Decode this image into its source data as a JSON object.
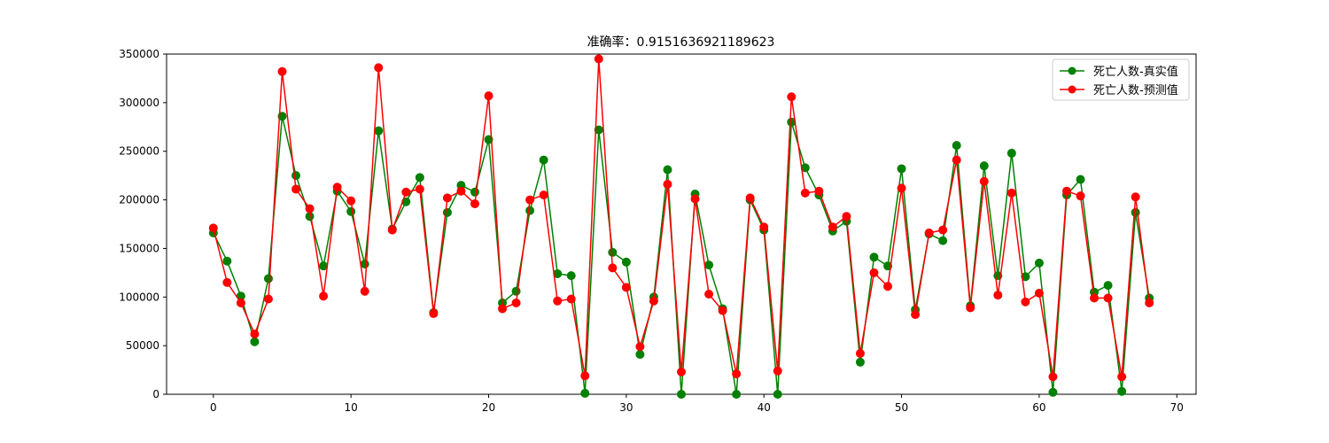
{
  "chart_data": {
    "type": "line",
    "title": "准确率：0.9151636921189623",
    "xlabel": "",
    "ylabel": "",
    "xlim": [
      -3.4,
      71.4
    ],
    "ylim": [
      0,
      350000
    ],
    "xticks": [
      0,
      10,
      20,
      30,
      40,
      50,
      60,
      70
    ],
    "yticks": [
      0,
      50000,
      100000,
      150000,
      200000,
      250000,
      300000,
      350000
    ],
    "grid": false,
    "legend_position": "top-right",
    "series": [
      {
        "name": "死亡人数-真实值",
        "color": "#008000",
        "marker": "circle",
        "values": [
          166000,
          137000,
          101000,
          54000,
          119000,
          286000,
          225000,
          183000,
          132000,
          209000,
          188000,
          134000,
          271000,
          170000,
          198000,
          223000,
          84000,
          187000,
          215000,
          208000,
          262000,
          94000,
          106000,
          189000,
          241000,
          124000,
          122000,
          1000,
          272000,
          146000,
          136000,
          41000,
          100000,
          231000,
          0,
          206000,
          133000,
          88000,
          0,
          200000,
          169000,
          0,
          280000,
          233000,
          205000,
          168000,
          178000,
          33000,
          141000,
          132000,
          232000,
          87000,
          165000,
          158000,
          256000,
          91000,
          235000,
          122000,
          248000,
          121000,
          135000,
          2000,
          205000,
          221000,
          105000,
          112000,
          3000,
          187000,
          99000
        ]
      },
      {
        "name": "死亡人数-预测值",
        "color": "#ff0000",
        "marker": "circle",
        "values": [
          171000,
          115000,
          94000,
          62000,
          98000,
          332000,
          211000,
          191000,
          101000,
          213000,
          199000,
          106000,
          336000,
          169000,
          208000,
          211000,
          83000,
          202000,
          209000,
          196000,
          307000,
          88000,
          94000,
          200000,
          205000,
          96000,
          98000,
          19000,
          345000,
          130000,
          110000,
          49000,
          96000,
          216000,
          23000,
          201000,
          103000,
          86000,
          21000,
          202000,
          172000,
          24000,
          306000,
          207000,
          209000,
          172000,
          183000,
          42000,
          125000,
          111000,
          212000,
          82000,
          166000,
          169000,
          241000,
          89000,
          219000,
          102000,
          207000,
          95000,
          104000,
          18000,
          209000,
          204000,
          99000,
          99000,
          18000,
          203000,
          94000
        ]
      }
    ]
  }
}
